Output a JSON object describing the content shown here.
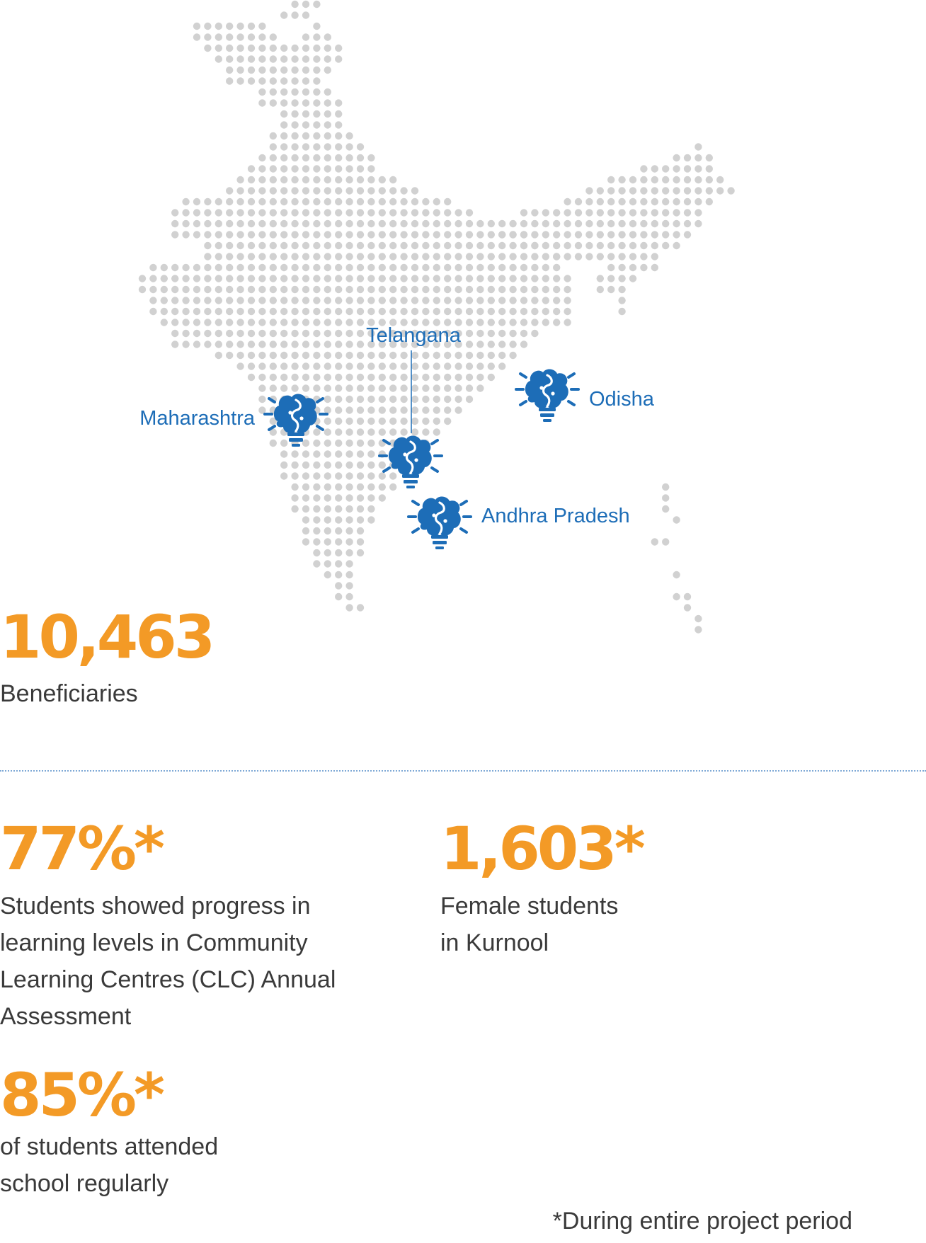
{
  "map": {
    "regions": [
      {
        "id": "maharashtra",
        "label": "Maharashtra"
      },
      {
        "id": "telangana",
        "label": "Telangana"
      },
      {
        "id": "odisha",
        "label": "Odisha"
      },
      {
        "id": "andhra",
        "label": "Andhra Pradesh"
      }
    ],
    "marker_icon": "brain-lightbulb-icon",
    "marker_color": "#1d6db7",
    "dot_color": "#d1d1d1"
  },
  "stats": {
    "beneficiaries": {
      "value": "10,463",
      "caption": "Beneficiaries"
    },
    "progress": {
      "value": "77%*",
      "caption": [
        "Students showed progress in",
        "learning levels in Community",
        "Learning Centres (CLC) Annual",
        "Assessment"
      ]
    },
    "female": {
      "value": "1,603*",
      "caption": [
        "Female students",
        "in Kurnool"
      ]
    },
    "attendance": {
      "value": "85%*",
      "caption": [
        "of students attended",
        "school regularly"
      ]
    }
  },
  "accent_color": "#f39a26",
  "footnote": "*During entire project period"
}
